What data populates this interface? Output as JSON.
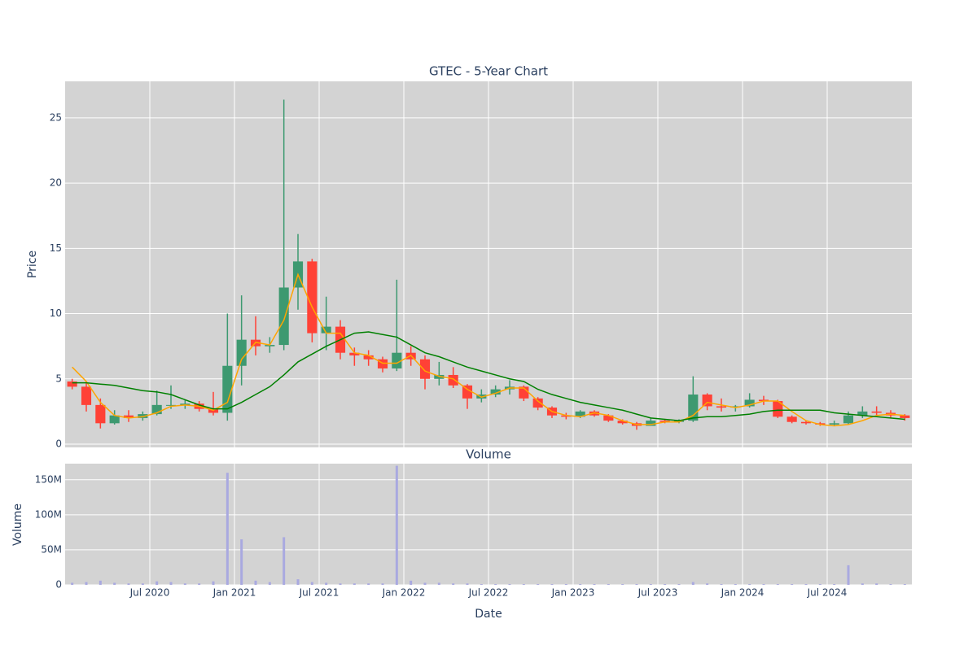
{
  "chart_data": {
    "type": "candlestick",
    "title": "GTEC - 5-Year Chart",
    "ylabel": "Price",
    "xlabel": "Date",
    "x": [
      "2020-01",
      "2020-02",
      "2020-03",
      "2020-04",
      "2020-05",
      "2020-06",
      "2020-07",
      "2020-08",
      "2020-09",
      "2020-10",
      "2020-11",
      "2020-12",
      "2021-01",
      "2021-02",
      "2021-03",
      "2021-04",
      "2021-05",
      "2021-06",
      "2021-07",
      "2021-08",
      "2021-09",
      "2021-10",
      "2021-11",
      "2021-12",
      "2022-01",
      "2022-02",
      "2022-03",
      "2022-04",
      "2022-05",
      "2022-06",
      "2022-07",
      "2022-08",
      "2022-09",
      "2022-10",
      "2022-11",
      "2022-12",
      "2023-01",
      "2023-02",
      "2023-03",
      "2023-04",
      "2023-05",
      "2023-06",
      "2023-07",
      "2023-08",
      "2023-09",
      "2023-10",
      "2023-11",
      "2023-12",
      "2024-01",
      "2024-02",
      "2024-03",
      "2024-04",
      "2024-05",
      "2024-06",
      "2024-07",
      "2024-08",
      "2024-09",
      "2024-10",
      "2024-11",
      "2024-12"
    ],
    "open": [
      4.8,
      4.4,
      3.0,
      1.6,
      2.2,
      2.0,
      2.3,
      3.0,
      3.0,
      3.1,
      2.7,
      2.4,
      6.0,
      8.0,
      7.5,
      7.6,
      12.0,
      14.0,
      8.5,
      9.0,
      7.0,
      6.8,
      6.5,
      5.8,
      7.0,
      6.5,
      5.0,
      5.3,
      4.5,
      3.5,
      3.8,
      4.2,
      4.4,
      3.5,
      2.8,
      2.2,
      2.1,
      2.5,
      2.2,
      1.8,
      1.6,
      1.4,
      1.8,
      1.7,
      1.8,
      3.8,
      2.9,
      2.8,
      2.9,
      3.4,
      3.3,
      2.1,
      1.7,
      1.6,
      1.5,
      1.6,
      2.2,
      2.5,
      2.4,
      2.2
    ],
    "high": [
      5.0,
      4.8,
      3.5,
      2.6,
      2.6,
      2.5,
      4.1,
      4.5,
      3.4,
      3.3,
      4.0,
      10.0,
      11.4,
      9.8,
      8.2,
      26.4,
      16.1,
      14.2,
      11.3,
      9.5,
      7.4,
      7.2,
      6.7,
      12.6,
      7.5,
      6.8,
      6.3,
      5.9,
      4.6,
      4.2,
      4.5,
      4.9,
      4.5,
      3.6,
      2.9,
      2.4,
      2.6,
      2.6,
      2.3,
      1.9,
      1.7,
      2.0,
      1.9,
      1.9,
      5.2,
      3.9,
      3.5,
      3.0,
      3.9,
      3.7,
      3.4,
      2.2,
      1.8,
      1.7,
      1.8,
      2.5,
      2.9,
      2.9,
      2.6,
      2.3
    ],
    "low": [
      4.2,
      2.5,
      1.2,
      1.5,
      1.7,
      1.8,
      2.2,
      2.7,
      2.7,
      2.5,
      2.2,
      1.8,
      4.5,
      6.8,
      7.0,
      7.2,
      10.3,
      7.8,
      7.2,
      6.5,
      6.0,
      6.0,
      5.5,
      5.6,
      6.0,
      4.2,
      4.5,
      4.3,
      2.7,
      3.2,
      3.6,
      3.8,
      3.3,
      2.6,
      2.0,
      1.9,
      2.0,
      2.1,
      1.7,
      1.5,
      1.1,
      1.4,
      1.6,
      1.6,
      1.7,
      2.6,
      2.5,
      2.5,
      2.8,
      3.0,
      2.0,
      1.6,
      1.5,
      1.4,
      1.4,
      1.5,
      2.0,
      2.2,
      2.0,
      1.8
    ],
    "close": [
      4.4,
      3.0,
      1.6,
      2.2,
      2.0,
      2.3,
      3.0,
      3.0,
      3.1,
      2.7,
      2.4,
      6.0,
      8.0,
      7.5,
      7.6,
      12.0,
      14.0,
      8.5,
      9.0,
      7.0,
      6.8,
      6.5,
      5.8,
      7.0,
      6.5,
      5.0,
      5.3,
      4.5,
      3.5,
      3.8,
      4.2,
      4.4,
      3.5,
      2.8,
      2.2,
      2.1,
      2.5,
      2.2,
      1.8,
      1.6,
      1.4,
      1.8,
      1.7,
      1.8,
      3.8,
      2.9,
      2.8,
      2.9,
      3.4,
      3.3,
      2.1,
      1.7,
      1.6,
      1.5,
      1.6,
      2.2,
      2.5,
      2.4,
      2.2,
      2.0
    ],
    "increasing_color": "#3d9970",
    "decreasing_color": "#ff4136",
    "overlays": [
      {
        "color": "orange",
        "values": [
          5.9,
          4.8,
          3.2,
          2.2,
          2.0,
          2.1,
          2.4,
          2.9,
          3.0,
          2.9,
          2.6,
          3.2,
          6.5,
          7.8,
          7.6,
          9.5,
          13.0,
          10.5,
          8.5,
          8.5,
          7.0,
          6.8,
          6.2,
          6.2,
          6.8,
          5.6,
          5.2,
          5.0,
          4.2,
          3.6,
          3.9,
          4.3,
          4.3,
          3.3,
          2.5,
          2.2,
          2.1,
          2.4,
          2.2,
          1.8,
          1.5,
          1.5,
          1.7,
          1.7,
          2.2,
          3.2,
          3.0,
          2.8,
          3.0,
          3.3,
          3.3,
          2.5,
          1.8,
          1.5,
          1.4,
          1.5,
          1.8,
          2.2,
          2.3,
          2.2
        ]
      },
      {
        "color": "green",
        "values": [
          4.7,
          4.7,
          4.6,
          4.5,
          4.3,
          4.1,
          4.0,
          3.8,
          3.4,
          3.0,
          2.7,
          2.7,
          3.2,
          3.8,
          4.4,
          5.3,
          6.3,
          6.9,
          7.5,
          8.0,
          8.5,
          8.6,
          8.4,
          8.2,
          7.6,
          7.0,
          6.7,
          6.3,
          5.9,
          5.6,
          5.3,
          5.0,
          4.8,
          4.2,
          3.8,
          3.5,
          3.2,
          3.0,
          2.8,
          2.6,
          2.3,
          2.0,
          1.9,
          1.8,
          2.0,
          2.1,
          2.1,
          2.2,
          2.3,
          2.5,
          2.6,
          2.6,
          2.6,
          2.6,
          2.4,
          2.3,
          2.2,
          2.1,
          2.0,
          1.9
        ]
      }
    ],
    "xlim": [
      "2020-01",
      "2024-12"
    ],
    "xticks": [
      {
        "value": "2020-07",
        "label": "Jul 2020"
      },
      {
        "value": "2021-01",
        "label": "Jan 2021"
      },
      {
        "value": "2021-07",
        "label": "Jul 2021"
      },
      {
        "value": "2022-01",
        "label": "Jan 2022"
      },
      {
        "value": "2022-07",
        "label": "Jul 2022"
      },
      {
        "value": "2023-01",
        "label": "Jan 2023"
      },
      {
        "value": "2023-07",
        "label": "Jul 2023"
      },
      {
        "value": "2024-01",
        "label": "Jan 2024"
      },
      {
        "value": "2024-07",
        "label": "Jul 2024"
      }
    ],
    "ylim": [
      -0.25,
      27.8
    ],
    "yticks": [
      0,
      5,
      10,
      15,
      20,
      25
    ],
    "grid": true,
    "volume": {
      "type": "bar",
      "title": "Volume",
      "ylabel": "Volume",
      "color": "#a9a9e0",
      "values": [
        3000000,
        4000000,
        6000000,
        3000000,
        2000000,
        2000000,
        5000000,
        4000000,
        2000000,
        2000000,
        5000000,
        160000000,
        65000000,
        6000000,
        4000000,
        68000000,
        8000000,
        4000000,
        3000000,
        2000000,
        2000000,
        2000000,
        2000000,
        170000000,
        6000000,
        3000000,
        3000000,
        2000000,
        2000000,
        1000000,
        1000000,
        1000000,
        1000000,
        1000000,
        1000000,
        1000000,
        1000000,
        1000000,
        1000000,
        1000000,
        1000000,
        1000000,
        1000000,
        1000000,
        4000000,
        2000000,
        1000000,
        1000000,
        1000000,
        1000000,
        1000000,
        1000000,
        1000000,
        1000000,
        1000000,
        28000000,
        2000000,
        2000000,
        1000000,
        1000000
      ],
      "ylim": [
        0,
        173000000
      ],
      "yticks": [
        0,
        {
          "value": 50000000,
          "label": "50M"
        },
        {
          "value": 100000000,
          "label": "100M"
        },
        {
          "value": 150000000,
          "label": "150M"
        }
      ]
    }
  }
}
